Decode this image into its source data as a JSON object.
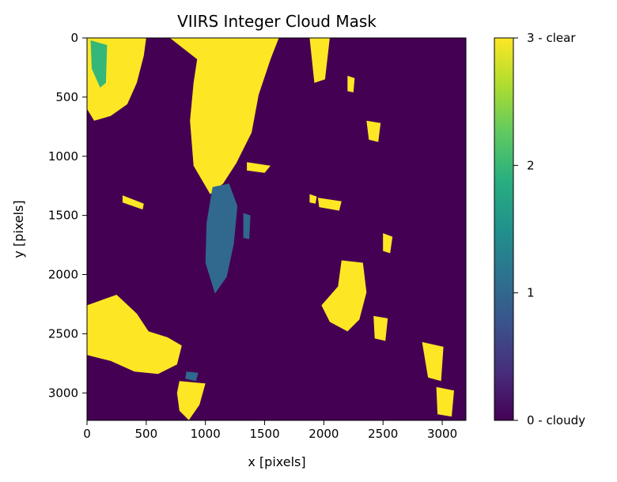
{
  "chart_data": {
    "type": "heatmap",
    "title": "VIIRS Integer Cloud Mask",
    "xlabel": "x [pixels]",
    "ylabel": "y [pixels]",
    "xlim": [
      0,
      3200
    ],
    "ylim": [
      3232,
      0
    ],
    "xticks": [
      0,
      500,
      1000,
      1500,
      2000,
      2500,
      3000
    ],
    "yticks": [
      0,
      500,
      1000,
      1500,
      2000,
      2500,
      3000
    ],
    "colormap": "viridis",
    "colorbar": {
      "range": [
        0,
        3
      ],
      "ticks": [
        {
          "value": 0,
          "label": "0 - cloudy"
        },
        {
          "value": 1,
          "label": "1"
        },
        {
          "value": 2,
          "label": "2"
        },
        {
          "value": 3,
          "label": "3 - clear"
        }
      ]
    },
    "colors": {
      "0": "#440154",
      "1": "#31688e",
      "2": "#35b779",
      "3": "#fde725"
    },
    "value_regions": [
      {
        "value": 3,
        "polygon": [
          [
            0,
            0
          ],
          [
            500,
            0
          ],
          [
            480,
            150
          ],
          [
            420,
            380
          ],
          [
            340,
            560
          ],
          [
            200,
            660
          ],
          [
            60,
            700
          ],
          [
            0,
            600
          ]
        ]
      },
      {
        "value": 3,
        "polygon": [
          [
            700,
            0
          ],
          [
            1620,
            0
          ],
          [
            1550,
            180
          ],
          [
            1450,
            480
          ],
          [
            1390,
            800
          ],
          [
            1260,
            1060
          ],
          [
            1150,
            1230
          ],
          [
            1040,
            1320
          ],
          [
            900,
            1080
          ],
          [
            870,
            700
          ],
          [
            900,
            380
          ],
          [
            930,
            180
          ]
        ]
      },
      {
        "value": 3,
        "polygon": [
          [
            1350,
            1050
          ],
          [
            1550,
            1080
          ],
          [
            1500,
            1140
          ],
          [
            1350,
            1120
          ]
        ]
      },
      {
        "value": 3,
        "polygon": [
          [
            2150,
            1880
          ],
          [
            2330,
            1900
          ],
          [
            2360,
            2150
          ],
          [
            2300,
            2380
          ],
          [
            2200,
            2480
          ],
          [
            2050,
            2400
          ],
          [
            1980,
            2260
          ],
          [
            2120,
            2100
          ]
        ]
      },
      {
        "value": 3,
        "polygon": [
          [
            0,
            2260
          ],
          [
            250,
            2170
          ],
          [
            420,
            2330
          ],
          [
            520,
            2480
          ],
          [
            680,
            2530
          ],
          [
            800,
            2600
          ],
          [
            760,
            2760
          ],
          [
            600,
            2840
          ],
          [
            400,
            2820
          ],
          [
            200,
            2730
          ],
          [
            0,
            2680
          ]
        ]
      },
      {
        "value": 3,
        "polygon": [
          [
            780,
            2900
          ],
          [
            1000,
            2920
          ],
          [
            950,
            3100
          ],
          [
            860,
            3230
          ],
          [
            780,
            3150
          ],
          [
            760,
            3000
          ]
        ]
      },
      {
        "value": 3,
        "polygon": [
          [
            2420,
            2350
          ],
          [
            2540,
            2370
          ],
          [
            2520,
            2560
          ],
          [
            2430,
            2540
          ]
        ]
      },
      {
        "value": 3,
        "polygon": [
          [
            2830,
            2570
          ],
          [
            3010,
            2610
          ],
          [
            2990,
            2900
          ],
          [
            2880,
            2870
          ]
        ]
      },
      {
        "value": 3,
        "polygon": [
          [
            2360,
            700
          ],
          [
            2480,
            720
          ],
          [
            2460,
            880
          ],
          [
            2380,
            860
          ]
        ]
      },
      {
        "value": 3,
        "polygon": [
          [
            1880,
            0
          ],
          [
            2050,
            0
          ],
          [
            2010,
            350
          ],
          [
            1920,
            380
          ]
        ]
      },
      {
        "value": 3,
        "polygon": [
          [
            2200,
            320
          ],
          [
            2260,
            340
          ],
          [
            2250,
            460
          ],
          [
            2200,
            450
          ]
        ]
      },
      {
        "value": 3,
        "polygon": [
          [
            2950,
            2950
          ],
          [
            3100,
            2980
          ],
          [
            3080,
            3200
          ],
          [
            2960,
            3180
          ]
        ]
      },
      {
        "value": 3,
        "polygon": [
          [
            1880,
            1320
          ],
          [
            1940,
            1340
          ],
          [
            1930,
            1400
          ],
          [
            1880,
            1390
          ]
        ]
      },
      {
        "value": 3,
        "polygon": [
          [
            2500,
            1650
          ],
          [
            2580,
            1680
          ],
          [
            2560,
            1820
          ],
          [
            2500,
            1800
          ]
        ]
      },
      {
        "value": 3,
        "polygon": [
          [
            300,
            1330
          ],
          [
            480,
            1400
          ],
          [
            470,
            1450
          ],
          [
            300,
            1390
          ]
        ]
      },
      {
        "value": 3,
        "polygon": [
          [
            1950,
            1350
          ],
          [
            2150,
            1380
          ],
          [
            2130,
            1460
          ],
          [
            1960,
            1430
          ]
        ]
      },
      {
        "value": 2,
        "polygon": [
          [
            30,
            20
          ],
          [
            170,
            60
          ],
          [
            160,
            380
          ],
          [
            110,
            420
          ],
          [
            40,
            260
          ]
        ]
      },
      {
        "value": 1,
        "polygon": [
          [
            1060,
            1260
          ],
          [
            1200,
            1230
          ],
          [
            1270,
            1420
          ],
          [
            1240,
            1740
          ],
          [
            1180,
            2020
          ],
          [
            1080,
            2160
          ],
          [
            1000,
            1900
          ],
          [
            1010,
            1560
          ]
        ]
      },
      {
        "value": 1,
        "polygon": [
          [
            840,
            2820
          ],
          [
            940,
            2830
          ],
          [
            920,
            2900
          ],
          [
            830,
            2880
          ]
        ]
      },
      {
        "value": 1,
        "polygon": [
          [
            1320,
            1480
          ],
          [
            1380,
            1500
          ],
          [
            1370,
            1700
          ],
          [
            1320,
            1690
          ]
        ]
      }
    ]
  }
}
